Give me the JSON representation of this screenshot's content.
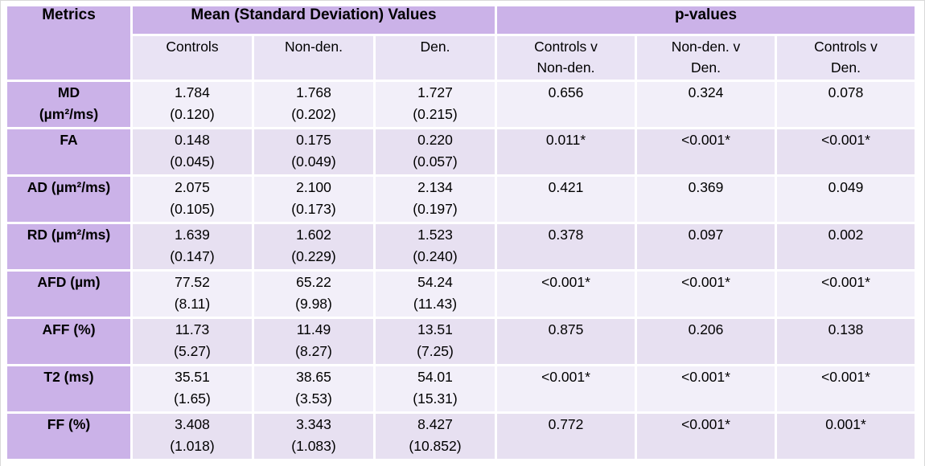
{
  "colors": {
    "header_purple": "#CBB2E8",
    "row_label_purple": "#CBB2E8",
    "subheader_bg": "#E9E3F4",
    "row_light_bg": "#F2EFF9",
    "row_dark_bg": "#E7E0F1",
    "grid_gap": "#FFFFFF",
    "text": "#000000"
  },
  "table": {
    "corner_header": "Metrics",
    "group_headers": [
      {
        "label": "Mean (Standard Deviation) Values"
      },
      {
        "label": "p-values"
      }
    ],
    "sub_headers": [
      "Controls",
      "Non-den.",
      "Den.",
      "Controls v\nNon-den.",
      "Non-den. v\nDen.",
      "Controls v\nDen."
    ],
    "rows": [
      {
        "metric": "MD\n(µm²/ms)",
        "controls": {
          "mean": "1.784",
          "sd": "(0.120)"
        },
        "non_den": {
          "mean": "1.768",
          "sd": "(0.202)"
        },
        "den": {
          "mean": "1.727",
          "sd": "(0.215)"
        },
        "p_controls_v_nonden": "0.656",
        "p_nonden_v_den": "0.324",
        "p_controls_v_den": "0.078"
      },
      {
        "metric": "FA",
        "controls": {
          "mean": "0.148",
          "sd": "(0.045)"
        },
        "non_den": {
          "mean": "0.175",
          "sd": "(0.049)"
        },
        "den": {
          "mean": "0.220",
          "sd": "(0.057)"
        },
        "p_controls_v_nonden": "0.011*",
        "p_nonden_v_den": "<0.001*",
        "p_controls_v_den": "<0.001*"
      },
      {
        "metric": "AD (µm²/ms)",
        "controls": {
          "mean": "2.075",
          "sd": "(0.105)"
        },
        "non_den": {
          "mean": "2.100",
          "sd": "(0.173)"
        },
        "den": {
          "mean": "2.134",
          "sd": "(0.197)"
        },
        "p_controls_v_nonden": "0.421",
        "p_nonden_v_den": "0.369",
        "p_controls_v_den": "0.049"
      },
      {
        "metric": "RD (µm²/ms)",
        "controls": {
          "mean": "1.639",
          "sd": "(0.147)"
        },
        "non_den": {
          "mean": "1.602",
          "sd": "(0.229)"
        },
        "den": {
          "mean": "1.523",
          "sd": "(0.240)"
        },
        "p_controls_v_nonden": "0.378",
        "p_nonden_v_den": "0.097",
        "p_controls_v_den": "0.002"
      },
      {
        "metric": "AFD (µm)",
        "controls": {
          "mean": "77.52",
          "sd": "(8.11)"
        },
        "non_den": {
          "mean": "65.22",
          "sd": "(9.98)"
        },
        "den": {
          "mean": "54.24",
          "sd": "(11.43)"
        },
        "p_controls_v_nonden": "<0.001*",
        "p_nonden_v_den": "<0.001*",
        "p_controls_v_den": "<0.001*"
      },
      {
        "metric": "AFF (%)",
        "controls": {
          "mean": "11.73",
          "sd": "(5.27)"
        },
        "non_den": {
          "mean": "11.49",
          "sd": "(8.27)"
        },
        "den": {
          "mean": "13.51",
          "sd": "(7.25)"
        },
        "p_controls_v_nonden": "0.875",
        "p_nonden_v_den": "0.206",
        "p_controls_v_den": "0.138"
      },
      {
        "metric": "T2 (ms)",
        "controls": {
          "mean": "35.51",
          "sd": "(1.65)"
        },
        "non_den": {
          "mean": "38.65",
          "sd": "(3.53)"
        },
        "den": {
          "mean": "54.01",
          "sd": "(15.31)"
        },
        "p_controls_v_nonden": "<0.001*",
        "p_nonden_v_den": "<0.001*",
        "p_controls_v_den": "<0.001*"
      },
      {
        "metric": "FF (%)",
        "controls": {
          "mean": "3.408",
          "sd": "(1.018)"
        },
        "non_den": {
          "mean": "3.343",
          "sd": "(1.083)"
        },
        "den": {
          "mean": "8.427",
          "sd": "(10.852)"
        },
        "p_controls_v_nonden": "0.772",
        "p_nonden_v_den": "<0.001*",
        "p_controls_v_den": "0.001*"
      }
    ]
  }
}
